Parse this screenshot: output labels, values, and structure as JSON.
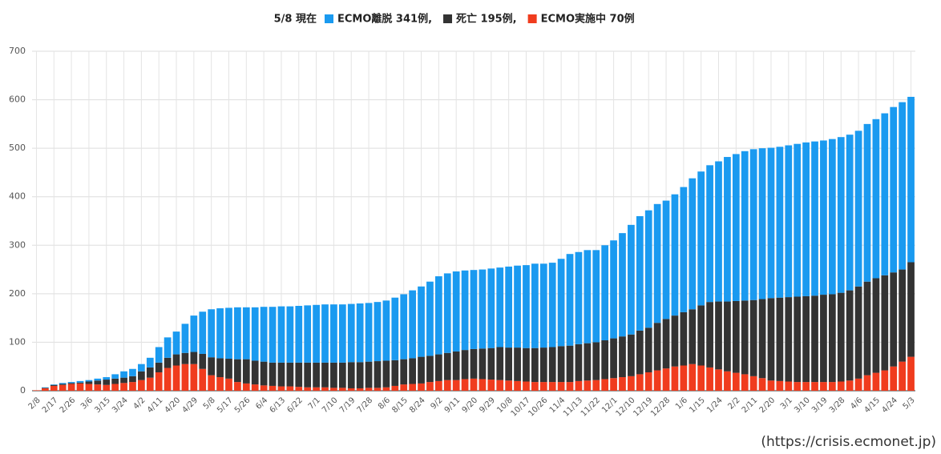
{
  "chart_data": {
    "type": "bar",
    "stacked": true,
    "title": "5/8 現在",
    "source": "(https://crisis.ecmonet.jp)",
    "categories": [
      "2/8",
      null,
      "2/17",
      null,
      "2/26",
      null,
      "3/6",
      null,
      "3/15",
      null,
      "3/24",
      null,
      "4/2",
      null,
      "4/11",
      null,
      "4/20",
      null,
      "4/29",
      null,
      "5/8",
      null,
      "5/17",
      null,
      "5/26",
      null,
      "6/4",
      null,
      "6/13",
      null,
      "6/22",
      null,
      "7/1",
      null,
      "7/10",
      null,
      "7/19",
      null,
      "7/28",
      null,
      "8/6",
      null,
      "8/15",
      null,
      "8/24",
      null,
      "9/2",
      null,
      "9/11",
      null,
      "9/20",
      null,
      "9/29",
      null,
      "10/8",
      null,
      "10/17",
      null,
      "10/26",
      null,
      "11/4",
      null,
      "11/13",
      null,
      "11/22",
      null,
      "12/1",
      null,
      "12/10",
      null,
      "12/19",
      null,
      "12/28",
      null,
      "1/6",
      null,
      "1/15",
      null,
      "1/24",
      null,
      "2/2",
      null,
      "2/11",
      null,
      "2/20",
      null,
      "3/1",
      null,
      "3/10",
      null,
      "3/19",
      null,
      "3/28",
      null,
      "4/6",
      null,
      "4/15",
      null,
      "4/24",
      null,
      "5/3"
    ],
    "series": [
      {
        "name": "ECMO離脱 341例,",
        "color": "#1a9af0",
        "values": [
          0,
          1,
          1,
          2,
          2,
          3,
          3,
          4,
          5,
          9,
          13,
          15,
          15,
          20,
          32,
          42,
          47,
          60,
          75,
          87,
          99,
          103,
          105,
          107,
          107,
          110,
          113,
          115,
          116,
          116,
          117,
          118,
          119,
          120,
          120,
          120,
          120,
          121,
          121,
          122,
          124,
          129,
          134,
          140,
          145,
          153,
          161,
          164,
          165,
          164,
          163,
          163,
          164,
          164,
          167,
          169,
          171,
          174,
          173,
          174,
          180,
          189,
          190,
          192,
          190,
          196,
          202,
          213,
          226,
          236,
          242,
          245,
          244,
          250,
          258,
          270,
          276,
          282,
          289,
          298,
          303,
          308,
          311,
          311,
          310,
          311,
          313,
          315,
          317,
          318,
          318,
          320,
          321,
          321,
          321,
          325,
          328,
          334,
          341,
          345,
          341
        ]
      },
      {
        "name": "死亡 195例,",
        "color": "#333333",
        "values": [
          0,
          1,
          2,
          2,
          2,
          2,
          5,
          8,
          11,
          11,
          11,
          12,
          18,
          21,
          20,
          21,
          23,
          23,
          25,
          31,
          37,
          39,
          41,
          47,
          50,
          49,
          49,
          48,
          49,
          49,
          50,
          51,
          51,
          51,
          52,
          52,
          54,
          54,
          54,
          55,
          55,
          53,
          52,
          53,
          55,
          54,
          55,
          56,
          59,
          60,
          61,
          63,
          65,
          68,
          68,
          69,
          69,
          70,
          71,
          72,
          74,
          75,
          76,
          77,
          78,
          80,
          82,
          84,
          86,
          90,
          92,
          98,
          102,
          105,
          110,
          113,
          124,
          135,
          140,
          144,
          148,
          152,
          157,
          163,
          170,
          172,
          174,
          176,
          177,
          178,
          180,
          181,
          183,
          186,
          190,
          193,
          195,
          196,
          194,
          190,
          195
        ]
      },
      {
        "name": "ECMO実施中 70例",
        "color": "#f03c1e",
        "values": [
          1,
          5,
          10,
          12,
          14,
          15,
          14,
          13,
          12,
          14,
          16,
          18,
          22,
          27,
          38,
          47,
          52,
          55,
          55,
          45,
          32,
          28,
          25,
          18,
          15,
          13,
          11,
          10,
          9,
          9,
          8,
          7,
          7,
          7,
          6,
          6,
          5,
          5,
          6,
          6,
          7,
          10,
          13,
          14,
          15,
          18,
          20,
          22,
          22,
          24,
          25,
          24,
          23,
          22,
          21,
          20,
          19,
          18,
          18,
          18,
          18,
          18,
          20,
          21,
          22,
          24,
          26,
          28,
          30,
          34,
          38,
          42,
          46,
          50,
          52,
          55,
          52,
          48,
          44,
          40,
          37,
          34,
          30,
          26,
          21,
          20,
          19,
          18,
          18,
          18,
          18,
          18,
          19,
          21,
          25,
          32,
          37,
          42,
          50,
          60,
          70
        ]
      }
    ],
    "ylim": [
      0,
      700
    ],
    "yticks": [
      0,
      100,
      200,
      300,
      400,
      500,
      600,
      700
    ],
    "grid": true
  }
}
